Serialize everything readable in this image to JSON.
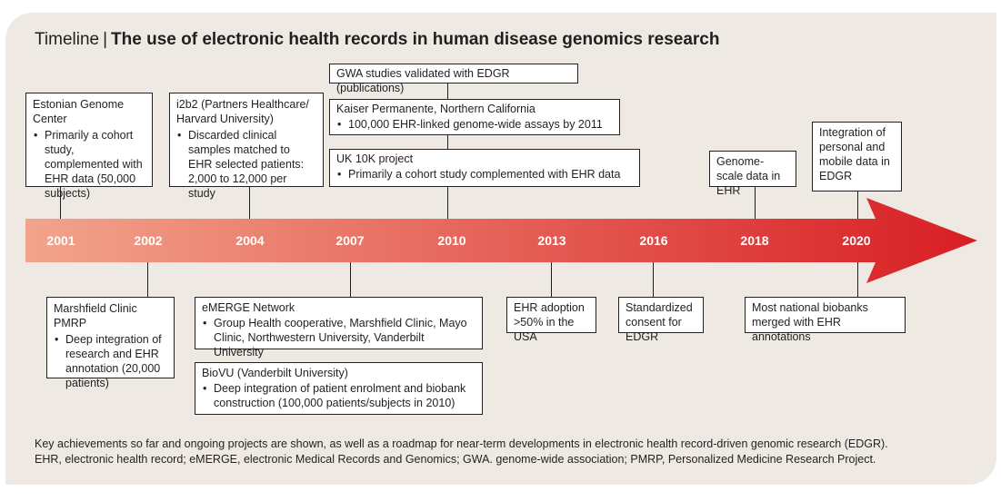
{
  "title": {
    "lead": "Timeline",
    "separator": "|",
    "main": "The use of electronic health records in human disease genomics research"
  },
  "years": [
    "2001",
    "2002",
    "2004",
    "2007",
    "2010",
    "2013",
    "2016",
    "2018",
    "2020"
  ],
  "boxes": {
    "estonian": {
      "head": "Estonian Genome Center",
      "bullet": "Primarily a cohort study, complemented with EHR data (50,000 subjects)"
    },
    "i2b2": {
      "head": "i2b2 (Partners Healthcare/ Harvard University)",
      "bullet": "Discarded clinical samples matched to EHR selected patients: 2,000 to 12,000 per study"
    },
    "gwa": {
      "head": "GWA studies validated with EDGR (publications)"
    },
    "kaiser": {
      "head": "Kaiser Permanente, Northern California",
      "bullet": "100,000 EHR-linked genome-wide assays by 2011"
    },
    "uk10k": {
      "head": "UK 10K project",
      "bullet": "Primarily a cohort study complemented with EHR data"
    },
    "genome_scale": {
      "head": "Genome-scale data in EHR"
    },
    "integration": {
      "head": "Integration of personal and mobile data in EDGR"
    },
    "marshfield": {
      "head": "Marshfield Clinic PMRP",
      "bullet": "Deep integration of research and EHR annotation (20,000 patients)"
    },
    "emerge": {
      "head": "eMERGE Network",
      "bullet": "Group Health cooperative, Marshfield Clinic, Mayo Clinic, Northwestern University, Vanderbilt University"
    },
    "biovu": {
      "head": "BioVU (Vanderbilt University)",
      "bullet": "Deep integration of patient enrolment and biobank construction (100,000 patients/subjects in 2010)"
    },
    "ehr_adoption": {
      "head": "EHR adoption >50% in the USA"
    },
    "consent": {
      "head": "Standardized consent for EDGR"
    },
    "biobanks": {
      "head": "Most national biobanks merged with EHR annotations"
    }
  },
  "caption": {
    "line1": "Key achievements so far and ongoing projects are shown, as well as a roadmap for near-term developments in electronic health record-driven genomic research (EDGR).",
    "line2": "EHR, electronic health record; eMERGE, electronic Medical Records and Genomics; GWA. genome-wide association; PMRP, Personalized Medicine Research Project."
  },
  "colors": {
    "panel": "#efe9e3",
    "arrow_start": "#f2a48c",
    "arrow_end": "#d81e24",
    "text": "#231f20"
  }
}
